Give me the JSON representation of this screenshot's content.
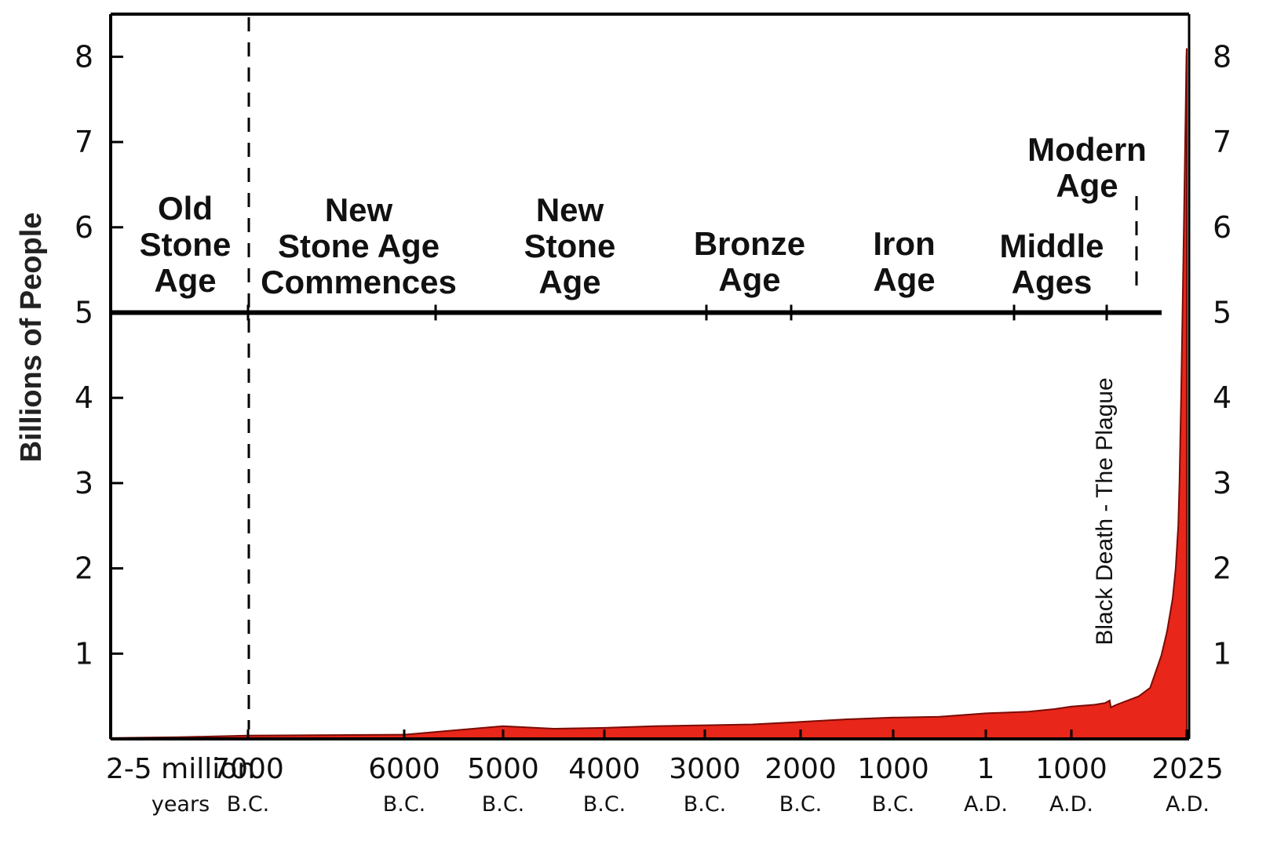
{
  "chart_data": {
    "type": "area",
    "title": "",
    "ylabel": "Billions of People",
    "ylim": [
      0,
      8.5
    ],
    "yticks": [
      {
        "value": 8,
        "label": "8"
      },
      {
        "value": 7,
        "label": "7"
      },
      {
        "value": 6,
        "label": "6"
      },
      {
        "value": 5,
        "label": "5"
      },
      {
        "value": 4,
        "label": "4"
      },
      {
        "value": 3,
        "label": "3"
      },
      {
        "value": 2,
        "label": "2"
      },
      {
        "value": 1,
        "label": "1"
      }
    ],
    "xlim": [
      -9000,
      2100
    ],
    "xticks": [
      {
        "value": -9000,
        "top": "2-5 million",
        "bottom": "years"
      },
      {
        "value": -7000,
        "top": "7000",
        "bottom": "B.C."
      },
      {
        "value": -6000,
        "top": "6000",
        "bottom": "B.C."
      },
      {
        "value": -5000,
        "top": "5000",
        "bottom": "B.C."
      },
      {
        "value": -4000,
        "top": "4000",
        "bottom": "B.C."
      },
      {
        "value": -3000,
        "top": "3000",
        "bottom": "B.C."
      },
      {
        "value": -2000,
        "top": "2000",
        "bottom": "B.C."
      },
      {
        "value": -1000,
        "top": "1000",
        "bottom": "B.C."
      },
      {
        "value": 1,
        "top": "1",
        "bottom": "A.D."
      },
      {
        "value": 1000,
        "top": "1000",
        "bottom": "A.D."
      },
      {
        "value": 2025,
        "top": "2025",
        "bottom": "A.D."
      }
    ],
    "series": [
      {
        "color": "#e8261a",
        "x": [
          -9000,
          -8000,
          -7000,
          -6000,
          -5500,
          -5000,
          -4500,
          -4000,
          -3500,
          -3000,
          -2500,
          -2000,
          -1500,
          -1000,
          -500,
          1,
          500,
          800,
          1000,
          1200,
          1300,
          1340,
          1351,
          1400,
          1500,
          1600,
          1700,
          1750,
          1800,
          1850,
          1900,
          1927,
          1950,
          1960,
          1975,
          1987,
          1999,
          2011,
          2022,
          2025
        ],
        "y": [
          0.01,
          0.02,
          0.04,
          0.05,
          0.1,
          0.15,
          0.12,
          0.13,
          0.15,
          0.16,
          0.17,
          0.2,
          0.23,
          0.25,
          0.26,
          0.3,
          0.32,
          0.35,
          0.38,
          0.4,
          0.42,
          0.45,
          0.37,
          0.4,
          0.45,
          0.5,
          0.6,
          0.79,
          0.98,
          1.26,
          1.65,
          2.0,
          2.5,
          3.0,
          4.0,
          5.0,
          6.0,
          7.0,
          8.0,
          8.1
        ]
      }
    ],
    "eras": [
      {
        "lines": [
          "Old",
          "Stone",
          "Age"
        ]
      },
      {
        "lines": [
          "New",
          "Stone Age",
          "Commences"
        ]
      },
      {
        "lines": [
          "New",
          "Stone",
          "Age"
        ]
      },
      {
        "lines": [
          "Bronze",
          "Age"
        ]
      },
      {
        "lines": [
          "Iron",
          "Age"
        ]
      },
      {
        "lines": [
          "Middle",
          "Ages"
        ]
      },
      {
        "lines": [
          "Modern",
          "Age"
        ]
      }
    ],
    "annotations": [
      {
        "text": "Black Death - The Plague",
        "x": 1350
      }
    ],
    "era_line_y": 5,
    "grid": false,
    "legend": "none"
  }
}
